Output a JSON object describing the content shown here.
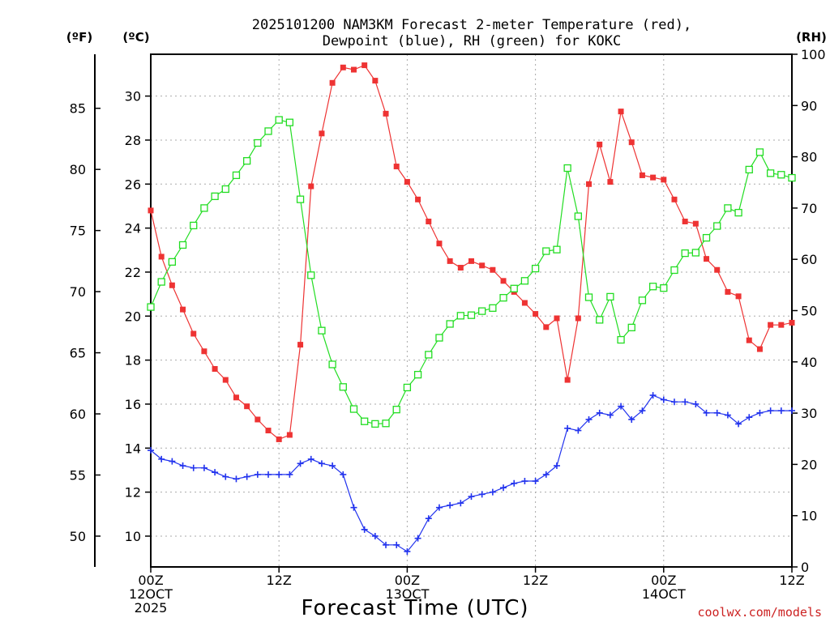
{
  "chart_data": {
    "type": "line",
    "title_line1": "2025101200 NAM3KM Forecast 2-meter Temperature (red),",
    "title_line2": "Dewpoint (blue), RH (green) for KOKC",
    "xlabel": "Forecast Time (UTC)",
    "credit": "coolwx.com/models",
    "unit_f": "(ºF)",
    "unit_c": "(ºC)",
    "unit_rh": "(RH)",
    "x_range_hours": [
      0,
      60
    ],
    "celsius_range": [
      8.6,
      31.9
    ],
    "rh_range": [
      0,
      100
    ],
    "celsius_ticks": [
      10,
      12,
      14,
      16,
      18,
      20,
      22,
      24,
      26,
      28,
      30
    ],
    "celsius_tick_labels": [
      "10",
      "12",
      "14",
      "16",
      "18",
      "20",
      "22",
      "24",
      "26",
      "28",
      "30"
    ],
    "fahrenheit_ticks": [
      50,
      55,
      60,
      65,
      70,
      75,
      80,
      85
    ],
    "fahrenheit_tick_labels": [
      "50",
      "55",
      "60",
      "65",
      "70",
      "75",
      "80",
      "85"
    ],
    "rh_ticks": [
      0,
      10,
      20,
      30,
      40,
      50,
      60,
      70,
      80,
      90,
      100
    ],
    "rh_tick_labels": [
      "0",
      "10",
      "20",
      "30",
      "40",
      "50",
      "60",
      "70",
      "80",
      "90",
      "100"
    ],
    "x_ticks": [
      {
        "hour": 0,
        "lines": [
          "00Z",
          "12OCT",
          "2025"
        ]
      },
      {
        "hour": 12,
        "lines": [
          "12Z"
        ]
      },
      {
        "hour": 24,
        "lines": [
          "00Z",
          "13OCT"
        ]
      },
      {
        "hour": 36,
        "lines": [
          "12Z"
        ]
      },
      {
        "hour": 48,
        "lines": [
          "00Z",
          "14OCT"
        ]
      },
      {
        "hour": 60,
        "lines": [
          "12Z"
        ]
      }
    ],
    "x": [
      0,
      1,
      2,
      3,
      4,
      5,
      6,
      7,
      8,
      9,
      10,
      11,
      12,
      13,
      14,
      15,
      16,
      17,
      18,
      19,
      20,
      21,
      22,
      23,
      24,
      25,
      26,
      27,
      28,
      29,
      30,
      31,
      32,
      33,
      34,
      35,
      36,
      37,
      38,
      39,
      40,
      41,
      42,
      43,
      44,
      45,
      46,
      47,
      48,
      49,
      50,
      51,
      52,
      53,
      54,
      55,
      56,
      57,
      58,
      59,
      60
    ],
    "series": [
      {
        "name": "Temperature",
        "units": "C",
        "color": "#ee3333",
        "marker": "filled-square",
        "values": [
          24.8,
          22.7,
          21.4,
          20.3,
          19.2,
          18.4,
          17.6,
          17.1,
          16.3,
          15.9,
          15.3,
          14.8,
          14.4,
          14.6,
          18.7,
          25.9,
          28.3,
          30.6,
          31.3,
          31.2,
          31.4,
          30.7,
          29.2,
          26.8,
          26.1,
          25.3,
          24.3,
          23.3,
          22.5,
          22.2,
          22.5,
          22.3,
          22.1,
          21.6,
          21.1,
          20.6,
          20.1,
          19.5,
          19.9,
          17.1,
          19.9,
          26,
          27.8,
          26.1,
          29.3,
          27.9,
          26.4,
          26.3,
          26.2,
          25.3,
          24.3,
          24.2,
          22.6,
          22.1,
          21.1,
          20.9,
          18.9,
          18.5,
          19.6,
          19.6,
          19.7
        ]
      },
      {
        "name": "Dewpoint",
        "units": "C",
        "color": "#2233ee",
        "marker": "plus",
        "values": [
          13.9,
          13.5,
          13.4,
          13.2,
          13.1,
          13.1,
          12.9,
          12.7,
          12.6,
          12.7,
          12.8,
          12.8,
          12.8,
          12.8,
          13.3,
          13.5,
          13.3,
          13.2,
          12.8,
          11.3,
          10.3,
          10,
          9.6,
          9.6,
          9.3,
          9.9,
          10.8,
          11.3,
          11.4,
          11.5,
          11.8,
          11.9,
          12.0,
          12.2,
          12.4,
          12.5,
          12.5,
          12.8,
          13.2,
          14.9,
          14.8,
          15.3,
          15.6,
          15.5,
          15.9,
          15.3,
          15.7,
          16.4,
          16.2,
          16.1,
          16.1,
          16,
          15.6,
          15.6,
          15.5,
          15.1,
          15.4,
          15.6,
          15.7,
          15.7,
          15.7
        ]
      },
      {
        "name": "RH",
        "units": "%",
        "color": "#22dd22",
        "marker": "open-square",
        "values": [
          50.7,
          55.6,
          59.5,
          62.8,
          66.6,
          70.0,
          72.3,
          73.7,
          76.4,
          79.2,
          82.7,
          85.0,
          87.2,
          86.7,
          71.7,
          56.9,
          46.1,
          39.5,
          35.1,
          30.8,
          28.4,
          27.9,
          28.0,
          30.7,
          35.0,
          37.5,
          41.4,
          44.7,
          47.4,
          49.0,
          49.1,
          49.9,
          50.5,
          52.5,
          54.3,
          55.8,
          58.2,
          61.6,
          61.9,
          77.8,
          68.4,
          52.6,
          48.2,
          52.7,
          44.3,
          46.7,
          52.0,
          54.7,
          54.4,
          57.9,
          61.2,
          61.3,
          64.2,
          66.5,
          70.0,
          69.1,
          77.5,
          80.9,
          76.8,
          76.5,
          75.9
        ]
      }
    ]
  }
}
